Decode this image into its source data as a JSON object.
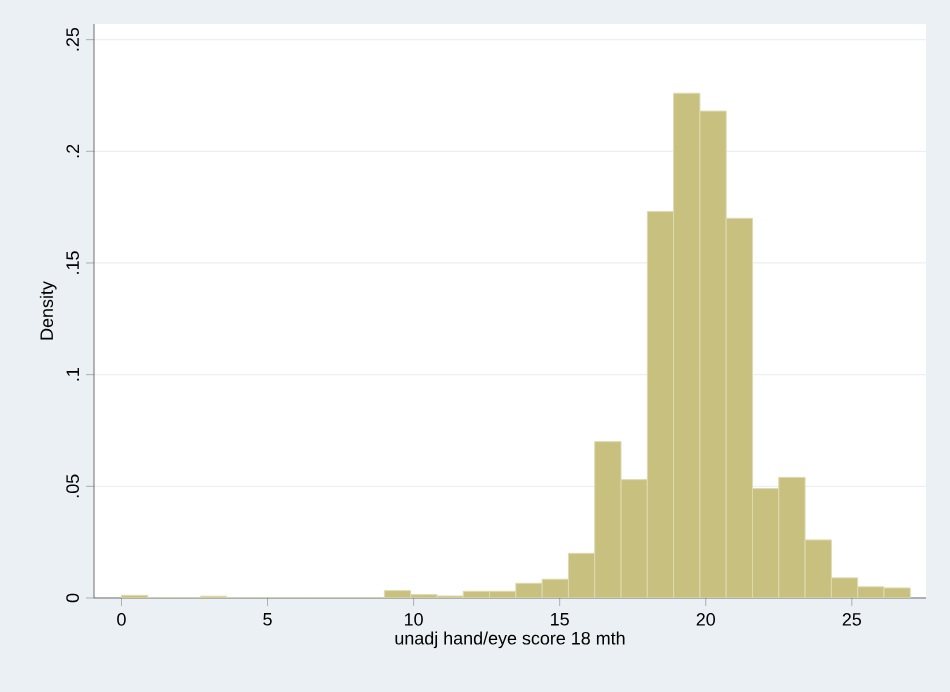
{
  "chart_data": {
    "type": "histogram",
    "xlabel": "unadj hand/eye score 18 mth",
    "ylabel": "Density",
    "bins": [
      0,
      0.9,
      1.8,
      2.7,
      3.6,
      4.5,
      5.4,
      6.3,
      7.2,
      8.1,
      9,
      9.9,
      10.8,
      11.7,
      12.6,
      13.5,
      14.4,
      15.3,
      16.2,
      17.1,
      18,
      18.9,
      19.8,
      20.7,
      21.6,
      22.5,
      23.4,
      24.3,
      25.2,
      26.1,
      27
    ],
    "values": [
      0.0012,
      0,
      0,
      0.0008,
      0,
      0,
      0,
      0,
      0,
      0,
      0.0033,
      0.0015,
      0.0009,
      0.003,
      0.003,
      0.0066,
      0.0084,
      0.02,
      0.07,
      0.053,
      0.173,
      0.226,
      0.218,
      0.17,
      0.049,
      0.054,
      0.026,
      0.009,
      0.005,
      0.0045
    ],
    "color": "#c8c07e",
    "xlim": [
      -0.94,
      27.54
    ],
    "ylim": [
      0,
      0.257
    ],
    "xticks": [
      0,
      5,
      10,
      15,
      20,
      25
    ],
    "yticks": [
      0,
      {
        "value": 0.05,
        "label": ".05"
      },
      {
        "value": 0.1,
        "label": ".1"
      },
      {
        "value": 0.15,
        "label": ".15"
      },
      {
        "value": 0.2,
        "label": ".2"
      },
      {
        "value": 0.25,
        "label": ".25"
      }
    ],
    "grid": "y"
  }
}
